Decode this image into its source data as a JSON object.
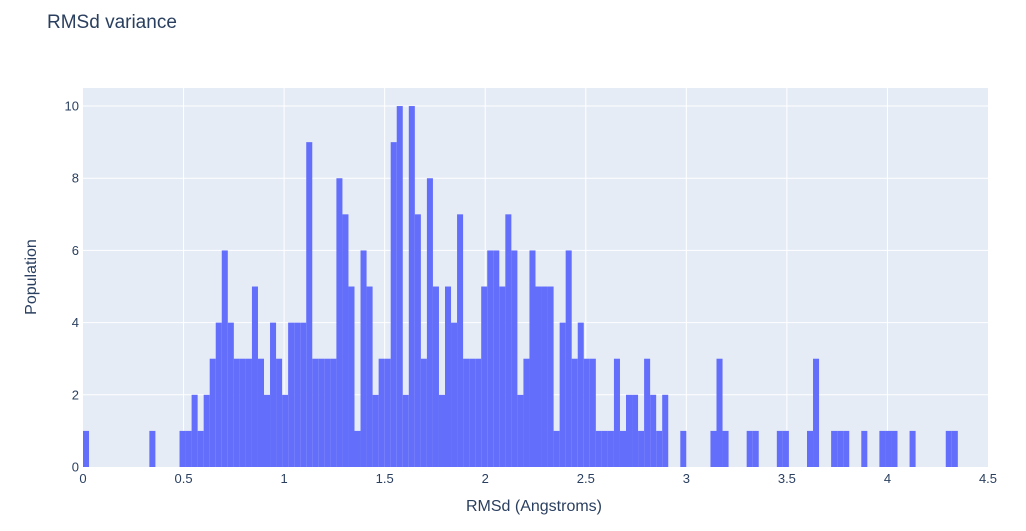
{
  "chart_data": {
    "type": "bar",
    "title": "RMSd variance",
    "xlabel": "RMSd (Angstroms)",
    "ylabel": "Population",
    "xlim": [
      0,
      4.5
    ],
    "ylim": [
      0,
      10.5
    ],
    "bin_width": 0.03,
    "x_ticks": [
      "0",
      "0.5",
      "1",
      "1.5",
      "2",
      "2.5",
      "3",
      "3.5",
      "4",
      "4.5"
    ],
    "y_ticks": [
      "0",
      "2",
      "4",
      "6",
      "8",
      "10"
    ],
    "grid": true,
    "bar_color": "#636efa",
    "plot_bg": "#e5ecf6",
    "bin_starts": [
      0,
      0.03,
      0.06,
      0.09,
      0.12,
      0.15,
      0.18,
      0.21,
      0.24,
      0.27,
      0.3,
      0.33,
      0.36,
      0.39,
      0.42,
      0.45,
      0.48,
      0.51,
      0.54,
      0.57,
      0.6,
      0.63,
      0.66,
      0.69,
      0.72,
      0.75,
      0.78,
      0.81,
      0.84,
      0.87,
      0.9,
      0.93,
      0.96,
      0.99,
      1.02,
      1.05,
      1.08,
      1.11,
      1.14,
      1.17,
      1.2,
      1.23,
      1.26,
      1.29,
      1.32,
      1.35,
      1.38,
      1.41,
      1.44,
      1.47,
      1.5,
      1.53,
      1.56,
      1.59,
      1.62,
      1.65,
      1.68,
      1.71,
      1.74,
      1.77,
      1.8,
      1.83,
      1.86,
      1.89,
      1.92,
      1.95,
      1.98,
      2.01,
      2.04,
      2.07,
      2.1,
      2.13,
      2.16,
      2.19,
      2.22,
      2.25,
      2.28,
      2.31,
      2.34,
      2.37,
      2.4,
      2.43,
      2.46,
      2.49,
      2.52,
      2.55,
      2.58,
      2.61,
      2.64,
      2.67,
      2.7,
      2.73,
      2.76,
      2.79,
      2.82,
      2.85,
      2.88,
      2.91,
      2.94,
      2.97,
      3.0,
      3.03,
      3.06,
      3.09,
      3.12,
      3.15,
      3.18,
      3.21,
      3.24,
      3.27,
      3.3,
      3.33,
      3.36,
      3.39,
      3.42,
      3.45,
      3.48,
      3.51,
      3.54,
      3.57,
      3.6,
      3.63,
      3.66,
      3.69,
      3.72,
      3.75,
      3.78,
      3.81,
      3.84,
      3.87,
      3.9,
      3.93,
      3.96,
      3.99,
      4.02,
      4.05,
      4.08,
      4.11,
      4.14,
      4.17,
      4.2,
      4.23,
      4.26,
      4.29,
      4.32,
      4.35,
      4.38,
      4.41,
      4.44,
      4.47
    ],
    "values": [
      1,
      0,
      0,
      0,
      0,
      0,
      0,
      0,
      0,
      0,
      0,
      1,
      0,
      0,
      0,
      0,
      1,
      1,
      2,
      1,
      2,
      3,
      4,
      6,
      4,
      3,
      3,
      3,
      5,
      3,
      2,
      4,
      3,
      2,
      4,
      4,
      4,
      9,
      3,
      3,
      3,
      3,
      8,
      7,
      5,
      1,
      6,
      5,
      2,
      3,
      3,
      9,
      10,
      2,
      10,
      7,
      3,
      8,
      5,
      2,
      5,
      4,
      7,
      3,
      3,
      3,
      5,
      6,
      6,
      5,
      7,
      6,
      2,
      3,
      6,
      5,
      5,
      5,
      1,
      4,
      6,
      3,
      4,
      3,
      3,
      1,
      1,
      1,
      3,
      1,
      2,
      2,
      1,
      3,
      2,
      1,
      2,
      0,
      0,
      1,
      0,
      0,
      0,
      0,
      1,
      3,
      1,
      0,
      0,
      0,
      1,
      1,
      0,
      0,
      0,
      1,
      1,
      0,
      0,
      0,
      1,
      3,
      0,
      0,
      1,
      1,
      1,
      0,
      0,
      1,
      0,
      0,
      1,
      1,
      1,
      0,
      0,
      1,
      0,
      0,
      0,
      0,
      0,
      1,
      1,
      0,
      0,
      0,
      0,
      0
    ]
  }
}
